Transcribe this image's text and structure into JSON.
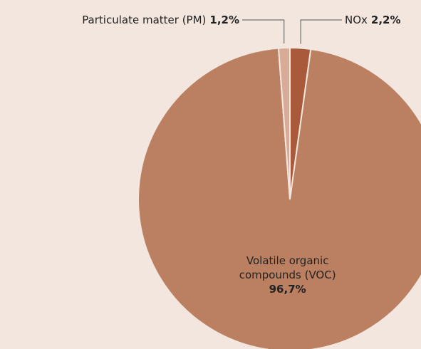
{
  "chart_data": {
    "type": "pie",
    "categories": [
      "NOx",
      "Volatile organic compounds (VOC)",
      "Particulate matter (PM)"
    ],
    "values": [
      2.2,
      96.7,
      1.2
    ],
    "value_labels": [
      "2,2%",
      "96,7%",
      "1,2%"
    ],
    "colors": [
      "#a85a3b",
      "#bb8061",
      "#d8ab97"
    ]
  }
}
